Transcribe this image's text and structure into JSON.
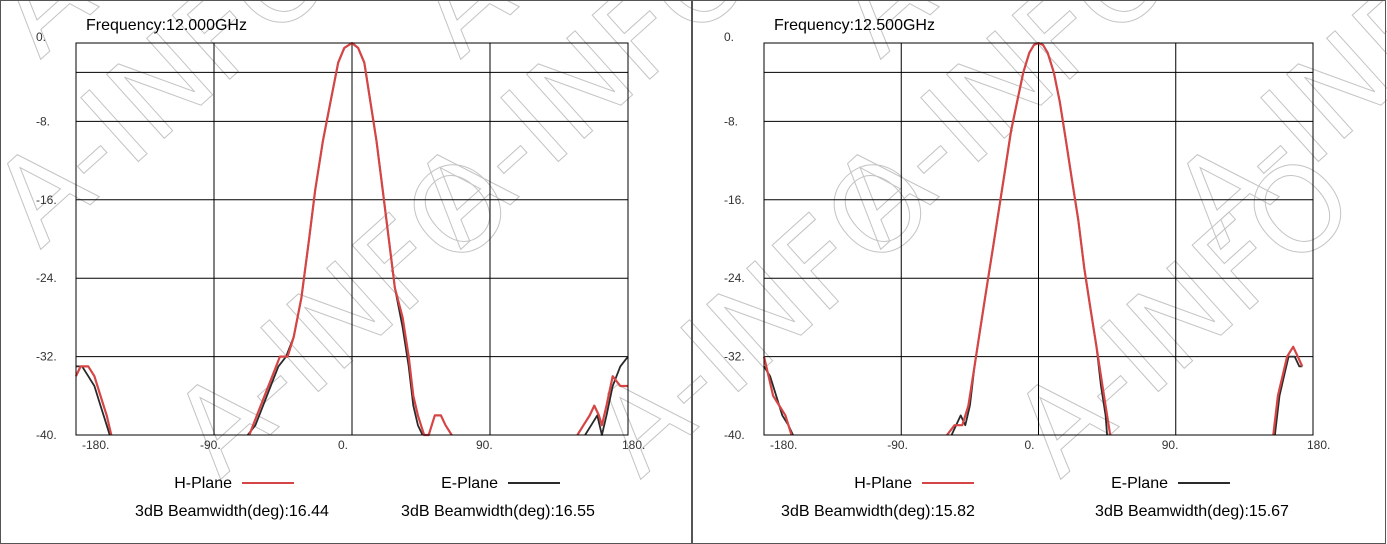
{
  "watermark_text": "A-INFO",
  "colors": {
    "h_plane": "#d64545",
    "e_plane": "#2a2a2a",
    "grid": "#000000",
    "watermark": "#c4c4c4"
  },
  "chart_data": [
    {
      "type": "line",
      "title": "Frequency:12.000GHz",
      "xlim": [
        -180,
        180
      ],
      "ylim": [
        -40,
        0
      ],
      "x_ticks": [
        -180,
        -90,
        0,
        90,
        180
      ],
      "x_tick_labels": [
        "-180.",
        "-90.",
        "0.",
        "90.",
        "180."
      ],
      "y_ticks": [
        0,
        -8,
        -16,
        -24,
        -32,
        -40
      ],
      "y_tick_labels": [
        "0.",
        "-8.",
        "-16.",
        "-24.",
        "-32.",
        "-40."
      ],
      "x_gridlines": [
        -90,
        0,
        90
      ],
      "y_gridlines": [
        -3,
        -8,
        -16,
        -24,
        -32
      ],
      "grid": true,
      "legend_position": "bottom",
      "series": [
        {
          "name": "H-Plane",
          "color": "#d64545",
          "beamwidth_label": "3dB Beamwidth(deg):16.44",
          "segments": [
            [
              [
                -180,
                -34
              ],
              [
                -177,
                -33
              ],
              [
                -172,
                -33
              ],
              [
                -168,
                -34
              ],
              [
                -164,
                -36
              ],
              [
                -160,
                -38
              ],
              [
                -157,
                -40
              ]
            ],
            [
              [
                -67,
                -40
              ],
              [
                -62,
                -38
              ],
              [
                -57,
                -36
              ],
              [
                -52,
                -34
              ],
              [
                -47,
                -32
              ],
              [
                -42,
                -32
              ],
              [
                -38,
                -30
              ],
              [
                -33,
                -26
              ],
              [
                -28,
                -20
              ],
              [
                -24,
                -15
              ],
              [
                -19,
                -10
              ],
              [
                -14,
                -6
              ],
              [
                -9,
                -2
              ],
              [
                -5,
                -0.5
              ],
              [
                0,
                0
              ],
              [
                4,
                -0.5
              ],
              [
                8,
                -2
              ],
              [
                12,
                -6
              ],
              [
                16,
                -10
              ],
              [
                20,
                -15
              ],
              [
                24,
                -20
              ],
              [
                28,
                -25
              ],
              [
                33,
                -28
              ],
              [
                37,
                -32
              ],
              [
                40,
                -36
              ],
              [
                43,
                -38
              ],
              [
                47,
                -40
              ],
              [
                50,
                -40
              ],
              [
                54,
                -38
              ],
              [
                58,
                -38
              ],
              [
                61,
                -39
              ],
              [
                65,
                -40
              ]
            ],
            [
              [
                147,
                -40
              ],
              [
                151,
                -39
              ],
              [
                155,
                -38
              ],
              [
                158,
                -37
              ],
              [
                161,
                -38
              ],
              [
                163,
                -39
              ],
              [
                166,
                -37
              ],
              [
                170,
                -34
              ],
              [
                175,
                -35
              ],
              [
                180,
                -35
              ]
            ]
          ]
        },
        {
          "name": "E-Plane",
          "color": "#2a2a2a",
          "beamwidth_label": "3dB Beamwidth(deg):16.55",
          "segments": [
            [
              [
                -180,
                -33
              ],
              [
                -176,
                -33
              ],
              [
                -172,
                -34
              ],
              [
                -168,
                -35
              ],
              [
                -164,
                -37
              ],
              [
                -160,
                -39
              ],
              [
                -158,
                -40
              ]
            ],
            [
              [
                -68,
                -40
              ],
              [
                -63,
                -39
              ],
              [
                -58,
                -37
              ],
              [
                -53,
                -35
              ],
              [
                -48,
                -33
              ],
              [
                -43,
                -32
              ],
              [
                -38,
                -30
              ],
              [
                -33,
                -26
              ],
              [
                -28,
                -20
              ],
              [
                -24,
                -15
              ],
              [
                -19,
                -10
              ],
              [
                -14,
                -6
              ],
              [
                -9,
                -2
              ],
              [
                -5,
                -0.5
              ],
              [
                0,
                0
              ],
              [
                4,
                -0.5
              ],
              [
                8,
                -2
              ],
              [
                12,
                -6
              ],
              [
                16,
                -10
              ],
              [
                20,
                -15
              ],
              [
                24,
                -20
              ],
              [
                28,
                -25
              ],
              [
                33,
                -29
              ],
              [
                37,
                -33
              ],
              [
                40,
                -37
              ],
              [
                43,
                -39
              ],
              [
                46,
                -40
              ]
            ],
            [
              [
                152,
                -40
              ],
              [
                156,
                -39
              ],
              [
                160,
                -38
              ],
              [
                163,
                -40
              ],
              [
                166,
                -38
              ],
              [
                170,
                -35
              ],
              [
                175,
                -33
              ],
              [
                180,
                -32
              ]
            ]
          ]
        }
      ]
    },
    {
      "type": "line",
      "title": "Frequency:12.500GHz",
      "xlim": [
        -180,
        180
      ],
      "ylim": [
        -40,
        0
      ],
      "x_ticks": [
        -180,
        -90,
        0,
        90,
        180
      ],
      "x_tick_labels": [
        "-180.",
        "-90.",
        "0.",
        "90.",
        "180."
      ],
      "y_ticks": [
        0,
        -8,
        -16,
        -24,
        -32,
        -40
      ],
      "y_tick_labels": [
        "0.",
        "-8.",
        "-16.",
        "-24.",
        "-32.",
        "-40."
      ],
      "x_gridlines": [
        -90,
        0,
        90
      ],
      "y_gridlines": [
        -3,
        -8,
        -16,
        -24,
        -32
      ],
      "grid": true,
      "legend_position": "bottom",
      "series": [
        {
          "name": "H-Plane",
          "color": "#d64545",
          "beamwidth_label": "3dB Beamwidth(deg):15.82",
          "segments": [
            [
              [
                -180,
                -32
              ],
              [
                -177,
                -34
              ],
              [
                -174,
                -36
              ],
              [
                -170,
                -37
              ],
              [
                -166,
                -38
              ],
              [
                -162,
                -40
              ]
            ],
            [
              [
                -60,
                -40
              ],
              [
                -55,
                -39
              ],
              [
                -50,
                -39
              ],
              [
                -46,
                -37
              ],
              [
                -42,
                -33
              ],
              [
                -38,
                -29
              ],
              [
                -34,
                -25
              ],
              [
                -30,
                -21
              ],
              [
                -26,
                -17
              ],
              [
                -22,
                -13
              ],
              [
                -18,
                -9
              ],
              [
                -14,
                -6
              ],
              [
                -10,
                -3
              ],
              [
                -6,
                -1
              ],
              [
                -3,
                -0.2
              ],
              [
                0,
                0
              ],
              [
                3,
                -0.2
              ],
              [
                6,
                -1
              ],
              [
                10,
                -3
              ],
              [
                14,
                -6
              ],
              [
                18,
                -10
              ],
              [
                22,
                -14
              ],
              [
                26,
                -18
              ],
              [
                30,
                -23
              ],
              [
                34,
                -27
              ],
              [
                38,
                -31
              ],
              [
                42,
                -35
              ],
              [
                45,
                -38
              ],
              [
                47,
                -40
              ]
            ],
            [
              [
                154,
                -40
              ],
              [
                157,
                -36
              ],
              [
                160,
                -34
              ],
              [
                163,
                -32
              ],
              [
                167,
                -31
              ],
              [
                170,
                -32
              ],
              [
                173,
                -33
              ]
            ]
          ]
        },
        {
          "name": "E-Plane",
          "color": "#2a2a2a",
          "beamwidth_label": "3dB Beamwidth(deg):15.67",
          "segments": [
            [
              [
                -180,
                -33
              ],
              [
                -176,
                -34
              ],
              [
                -172,
                -36
              ],
              [
                -168,
                -38
              ],
              [
                -164,
                -39
              ],
              [
                -161,
                -40
              ]
            ],
            [
              [
                -57,
                -40
              ],
              [
                -54,
                -39
              ],
              [
                -51,
                -38
              ],
              [
                -48,
                -39
              ],
              [
                -45,
                -37
              ],
              [
                -42,
                -33
              ],
              [
                -38,
                -29
              ],
              [
                -34,
                -25
              ],
              [
                -30,
                -21
              ],
              [
                -26,
                -17
              ],
              [
                -22,
                -13
              ],
              [
                -18,
                -9
              ],
              [
                -14,
                -6
              ],
              [
                -10,
                -3
              ],
              [
                -6,
                -1
              ],
              [
                -3,
                -0.2
              ],
              [
                0,
                0
              ],
              [
                3,
                -0.2
              ],
              [
                6,
                -1
              ],
              [
                10,
                -3
              ],
              [
                14,
                -6
              ],
              [
                18,
                -10
              ],
              [
                22,
                -14
              ],
              [
                26,
                -18
              ],
              [
                30,
                -23
              ],
              [
                34,
                -27
              ],
              [
                38,
                -31
              ],
              [
                41,
                -35
              ],
              [
                44,
                -38
              ],
              [
                45,
                -40
              ]
            ],
            [
              [
                155,
                -40
              ],
              [
                158,
                -36
              ],
              [
                161,
                -34
              ],
              [
                164,
                -32
              ],
              [
                168,
                -32
              ],
              [
                171,
                -33
              ],
              [
                173,
                -33
              ]
            ]
          ]
        }
      ]
    }
  ]
}
